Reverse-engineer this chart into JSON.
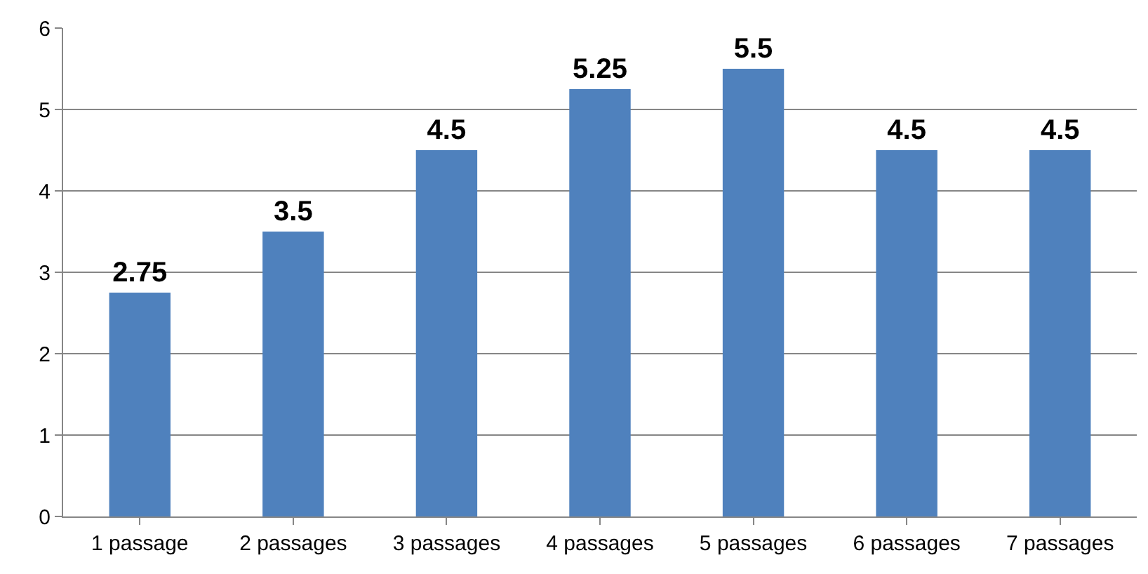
{
  "chart_data": {
    "type": "bar",
    "categories": [
      "1 passage",
      "2 passages",
      "3 passages",
      "4 passages",
      "5 passages",
      "6 passages",
      "7 passages"
    ],
    "values": [
      2.75,
      3.5,
      4.5,
      5.25,
      5.5,
      4.5,
      4.5
    ],
    "color": "#4f81bd",
    "ylim": [
      0,
      6
    ],
    "yticks": [
      0,
      1,
      2,
      3,
      4,
      5,
      6
    ],
    "grid": "y",
    "data_labels": true
  }
}
